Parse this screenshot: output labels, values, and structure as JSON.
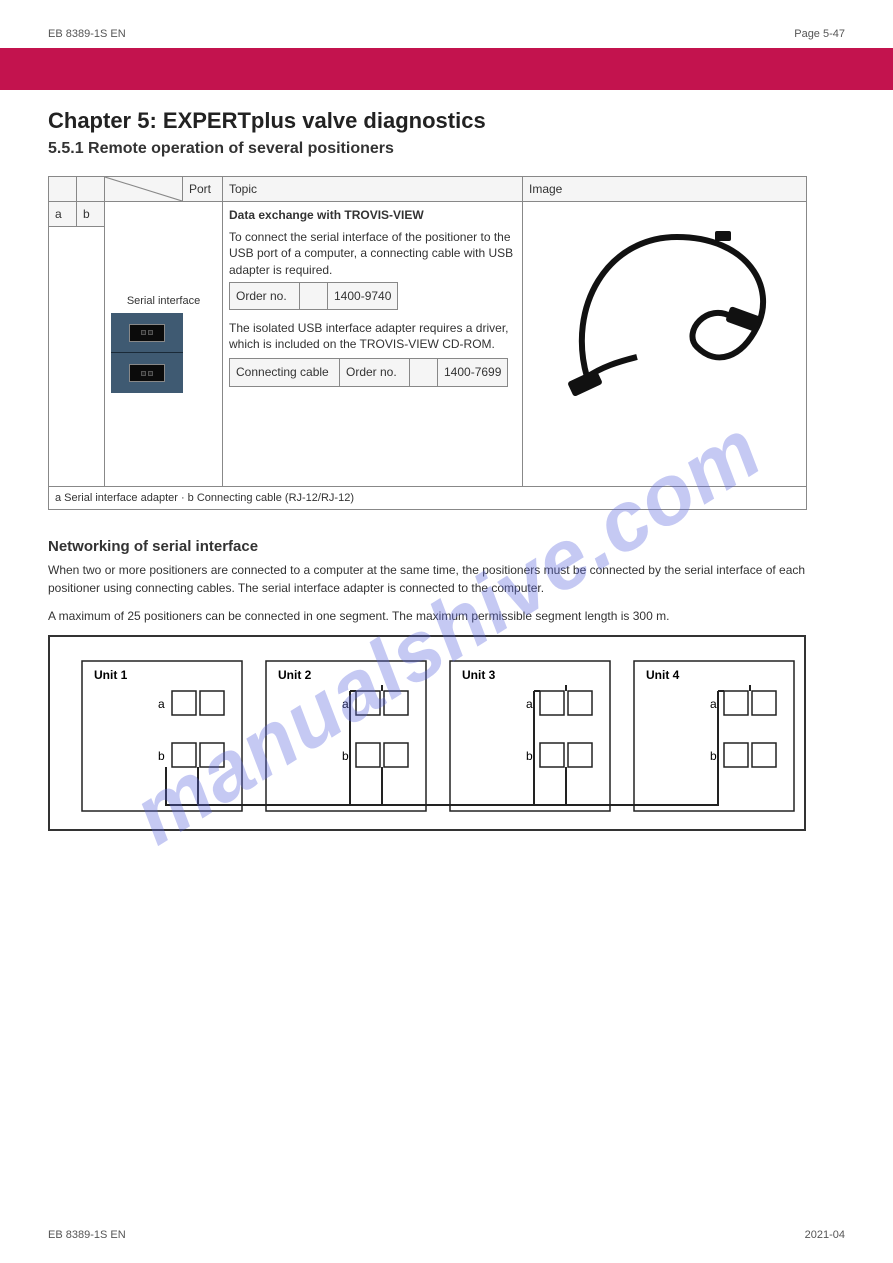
{
  "header": {
    "doc_id": "EB 8389-1S EN",
    "page_label": "Page 5-47"
  },
  "banner_color": "#c3134e",
  "chapter": "Chapter 5: EXPERTplus valve diagnostics",
  "subtitle": "5.5.1 Remote operation of several positioners",
  "spec_table": {
    "head": {
      "blank": "",
      "port": "Port",
      "topic": "Topic",
      "image": "Image"
    },
    "marks": {
      "a": "a",
      "b": "b"
    },
    "row": {
      "port_cell_title": "Serial interface",
      "topic_title": "Data exchange with TROVIS-VIEW",
      "topic_body": "To connect the serial interface of the positioner to the USB port of a computer, a connecting cable with USB adapter is required.",
      "sub1": {
        "c2": "Order no.",
        "v": "1400-9740"
      },
      "sub2_title": "The isolated USB interface adapter requires a driver, which is included on the TROVIS-VIEW CD-ROM.",
      "sub2": {
        "c1": "Connecting cable",
        "c2": "Order no.",
        "v": "1400-7699"
      },
      "cable_alt": "Connecting cable"
    },
    "marks_footer": "a  Serial interface adapter  ·  b  Connecting cable (RJ-12/RJ-12)"
  },
  "section_net": {
    "title": "Networking of serial interface",
    "p1": "When two or more positioners are connected to a computer at the same time, the positioners must be connected by the serial interface of each positioner using connecting cables. The serial interface adapter is connected to the computer.",
    "p2": "A maximum of 25 positioners can be connected in one segment. The maximum permissible segment length is 300 m."
  },
  "diagram": {
    "units": [
      "Unit 1",
      "Unit 2",
      "Unit 3",
      "Unit 4"
    ],
    "ports": {
      "a": "a",
      "b": "b"
    },
    "colors": {
      "border": "#222",
      "line": "#222"
    }
  },
  "watermark": "manualshive.com",
  "footer": {
    "left": "EB 8389-1S EN",
    "right": "2021-04"
  }
}
